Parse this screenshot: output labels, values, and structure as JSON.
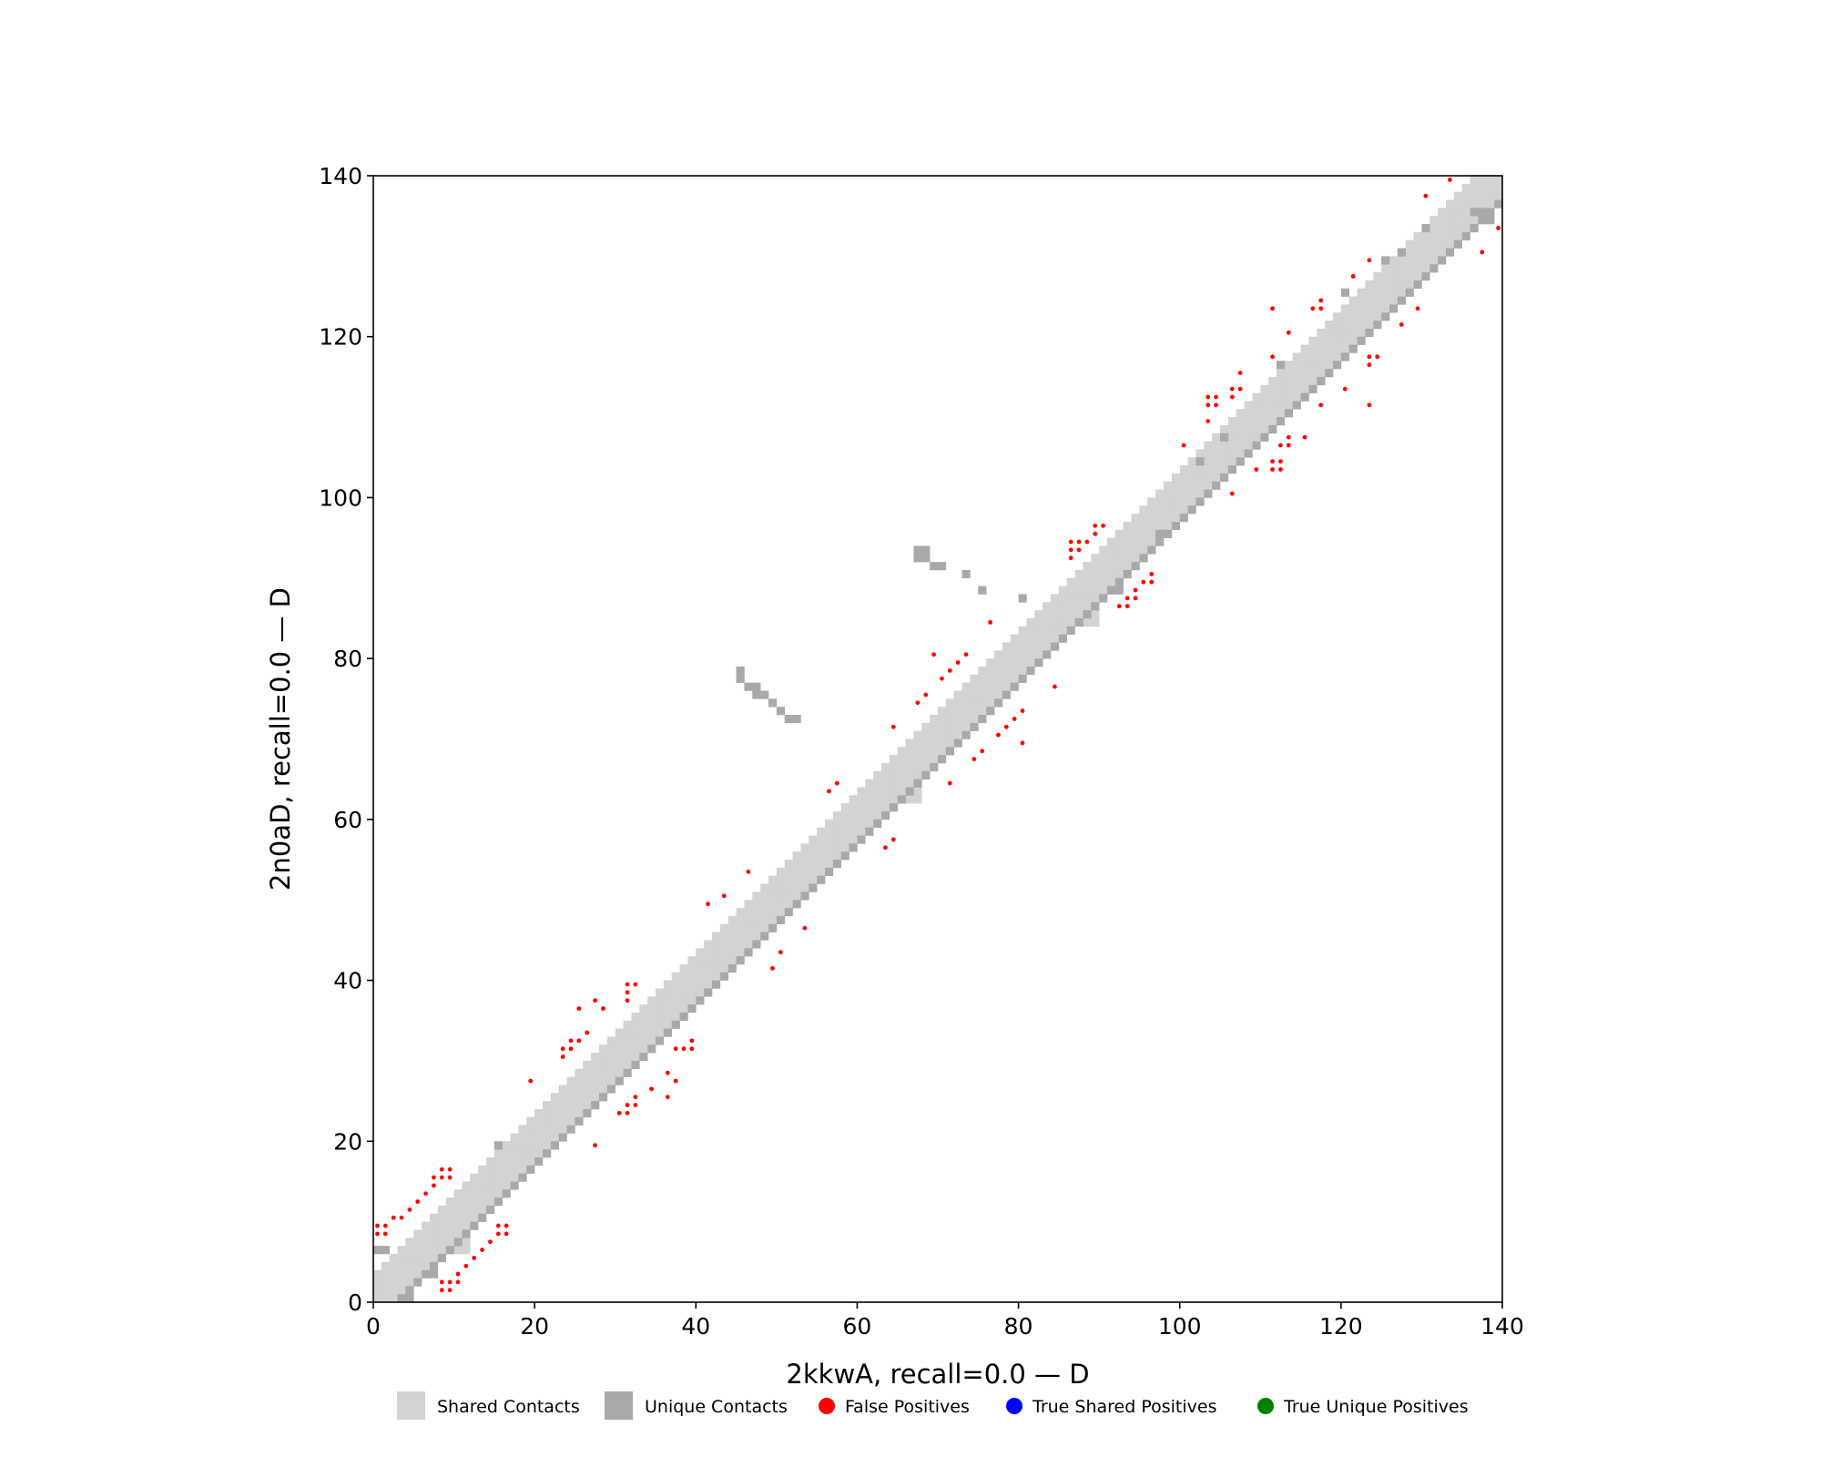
{
  "chart_data": {
    "type": "scatter",
    "xlabel": "2kkwA, recall=0.0 — D",
    "ylabel": "2n0aD, recall=0.0 — D",
    "xlim": [
      0,
      140
    ],
    "ylim": [
      0,
      140
    ],
    "xticks": [
      0,
      20,
      40,
      60,
      80,
      100,
      120,
      140
    ],
    "yticks": [
      0,
      20,
      40,
      60,
      80,
      100,
      120,
      140
    ],
    "grid": false,
    "legend_placement": "bottom",
    "legend": [
      {
        "label": "Shared Contacts",
        "marker": "square",
        "color": "#d3d3d3"
      },
      {
        "label": "Unique Contacts",
        "marker": "square",
        "color": "#a9a9a9"
      },
      {
        "label": "False Positives",
        "marker": "circle",
        "color": "#ff0000"
      },
      {
        "label": "True Shared Positives",
        "marker": "circle",
        "color": "#0000ff"
      },
      {
        "label": "True Unique Positives",
        "marker": "circle",
        "color": "#008000"
      }
    ],
    "colors": {
      "shared": "#d3d3d3",
      "unique": "#a9a9a9",
      "false_positive": "#ff0000",
      "true_shared": "#0000ff",
      "true_unique": "#008000"
    },
    "shared_band": {
      "from": 0,
      "to": 139,
      "offsets": [
        -2,
        -1,
        0,
        1,
        2,
        3
      ]
    },
    "unique_band": {
      "from": 3,
      "to": 139,
      "offsets": [
        -3
      ]
    },
    "shared_extra_blocks": [
      [
        [
          8,
          12
        ],
        [
          6,
          10
        ]
      ],
      [
        [
          15,
          18
        ],
        [
          16,
          20
        ]
      ],
      [
        [
          18,
          22
        ],
        [
          18,
          22
        ]
      ],
      [
        [
          64,
          68
        ],
        [
          62,
          66
        ]
      ],
      [
        [
          86,
          90
        ],
        [
          84,
          88
        ]
      ]
    ],
    "unique_clusters": [
      [
        [
          0,
          2
        ],
        [
          6,
          7
        ]
      ],
      [
        [
          4,
          5
        ],
        [
          0,
          1
        ]
      ],
      [
        [
          7,
          8
        ],
        [
          3,
          4
        ]
      ],
      [
        [
          15,
          16
        ],
        [
          19,
          20
        ]
      ],
      [
        [
          45,
          46
        ],
        [
          77,
          79
        ]
      ],
      [
        [
          46,
          47
        ],
        [
          76,
          77
        ]
      ],
      [
        [
          47,
          48
        ],
        [
          75,
          77
        ]
      ],
      [
        [
          48,
          49
        ],
        [
          75,
          76
        ]
      ],
      [
        [
          49,
          50
        ],
        [
          74,
          75
        ]
      ],
      [
        [
          50,
          51
        ],
        [
          73,
          74
        ]
      ],
      [
        [
          51,
          52
        ],
        [
          72,
          73
        ]
      ],
      [
        [
          52,
          53
        ],
        [
          72,
          73
        ]
      ],
      [
        [
          67,
          69
        ],
        [
          92,
          94
        ]
      ],
      [
        [
          69,
          70
        ],
        [
          91,
          92
        ]
      ],
      [
        [
          70,
          71
        ],
        [
          91,
          92
        ]
      ],
      [
        [
          73,
          74
        ],
        [
          90,
          91
        ]
      ],
      [
        [
          75,
          76
        ],
        [
          88,
          89
        ]
      ],
      [
        [
          80,
          81
        ],
        [
          87,
          88
        ]
      ],
      [
        [
          91,
          93
        ],
        [
          88,
          89
        ]
      ],
      [
        [
          97,
          98
        ],
        [
          95,
          96
        ]
      ],
      [
        [
          102,
          103
        ],
        [
          104,
          105
        ]
      ],
      [
        [
          105,
          106
        ],
        [
          107,
          108
        ]
      ],
      [
        [
          112,
          113
        ],
        [
          116,
          117
        ]
      ],
      [
        [
          120,
          121
        ],
        [
          125,
          126
        ]
      ],
      [
        [
          125,
          126
        ],
        [
          129,
          130
        ]
      ],
      [
        [
          127,
          128
        ],
        [
          130,
          131
        ]
      ],
      [
        [
          130,
          131
        ],
        [
          133,
          134
        ]
      ],
      [
        [
          136,
          138
        ],
        [
          135,
          136
        ]
      ],
      [
        [
          138,
          139
        ],
        [
          134,
          135
        ]
      ]
    ],
    "false_positives": [
      [
        0,
        8
      ],
      [
        0,
        9
      ],
      [
        1,
        8
      ],
      [
        1,
        9
      ],
      [
        2,
        10
      ],
      [
        3,
        10
      ],
      [
        4,
        11
      ],
      [
        5,
        12
      ],
      [
        6,
        13
      ],
      [
        7,
        14
      ],
      [
        7,
        15
      ],
      [
        8,
        15
      ],
      [
        8,
        16
      ],
      [
        9,
        15
      ],
      [
        9,
        16
      ],
      [
        8,
        1
      ],
      [
        8,
        2
      ],
      [
        9,
        1
      ],
      [
        9,
        2
      ],
      [
        10,
        2
      ],
      [
        10,
        3
      ],
      [
        11,
        4
      ],
      [
        12,
        5
      ],
      [
        13,
        6
      ],
      [
        14,
        7
      ],
      [
        15,
        8
      ],
      [
        15,
        9
      ],
      [
        16,
        8
      ],
      [
        16,
        9
      ],
      [
        19,
        27
      ],
      [
        23,
        30
      ],
      [
        23,
        31
      ],
      [
        24,
        31
      ],
      [
        24,
        32
      ],
      [
        25,
        32
      ],
      [
        25,
        36
      ],
      [
        26,
        33
      ],
      [
        27,
        37
      ],
      [
        28,
        36
      ],
      [
        31,
        37
      ],
      [
        31,
        38
      ],
      [
        31,
        39
      ],
      [
        32,
        39
      ],
      [
        27,
        19
      ],
      [
        30,
        23
      ],
      [
        31,
        23
      ],
      [
        31,
        24
      ],
      [
        32,
        24
      ],
      [
        32,
        25
      ],
      [
        34,
        26
      ],
      [
        36,
        25
      ],
      [
        36,
        28
      ],
      [
        37,
        27
      ],
      [
        37,
        31
      ],
      [
        38,
        31
      ],
      [
        39,
        31
      ],
      [
        39,
        32
      ],
      [
        41,
        49
      ],
      [
        43,
        50
      ],
      [
        46,
        53
      ],
      [
        49,
        41
      ],
      [
        50,
        43
      ],
      [
        53,
        46
      ],
      [
        56,
        63
      ],
      [
        57,
        64
      ],
      [
        63,
        56
      ],
      [
        64,
        57
      ],
      [
        64,
        71
      ],
      [
        67,
        74
      ],
      [
        68,
        75
      ],
      [
        69,
        80
      ],
      [
        70,
        77
      ],
      [
        71,
        78
      ],
      [
        72,
        79
      ],
      [
        73,
        80
      ],
      [
        71,
        64
      ],
      [
        74,
        67
      ],
      [
        75,
        68
      ],
      [
        77,
        70
      ],
      [
        78,
        71
      ],
      [
        79,
        72
      ],
      [
        80,
        73
      ],
      [
        80,
        69
      ],
      [
        76,
        84
      ],
      [
        84,
        76
      ],
      [
        86,
        92
      ],
      [
        86,
        93
      ],
      [
        86,
        94
      ],
      [
        87,
        93
      ],
      [
        87,
        94
      ],
      [
        88,
        94
      ],
      [
        89,
        95
      ],
      [
        89,
        96
      ],
      [
        90,
        96
      ],
      [
        92,
        86
      ],
      [
        93,
        86
      ],
      [
        93,
        87
      ],
      [
        94,
        87
      ],
      [
        94,
        88
      ],
      [
        95,
        89
      ],
      [
        96,
        89
      ],
      [
        96,
        90
      ],
      [
        100,
        106
      ],
      [
        103,
        109
      ],
      [
        103,
        111
      ],
      [
        103,
        112
      ],
      [
        104,
        111
      ],
      [
        104,
        112
      ],
      [
        106,
        112
      ],
      [
        106,
        113
      ],
      [
        107,
        113
      ],
      [
        107,
        115
      ],
      [
        106,
        100
      ],
      [
        109,
        103
      ],
      [
        111,
        103
      ],
      [
        112,
        103
      ],
      [
        111,
        104
      ],
      [
        112,
        104
      ],
      [
        112,
        106
      ],
      [
        113,
        106
      ],
      [
        113,
        107
      ],
      [
        115,
        107
      ],
      [
        111,
        117
      ],
      [
        111,
        123
      ],
      [
        113,
        120
      ],
      [
        116,
        123
      ],
      [
        117,
        123
      ],
      [
        117,
        124
      ],
      [
        117,
        111
      ],
      [
        120,
        113
      ],
      [
        123,
        116
      ],
      [
        123,
        117
      ],
      [
        123,
        111
      ],
      [
        124,
        117
      ],
      [
        121,
        127
      ],
      [
        123,
        129
      ],
      [
        127,
        121
      ],
      [
        129,
        123
      ],
      [
        130,
        137
      ],
      [
        133,
        139
      ],
      [
        137,
        130
      ],
      [
        139,
        133
      ]
    ]
  }
}
